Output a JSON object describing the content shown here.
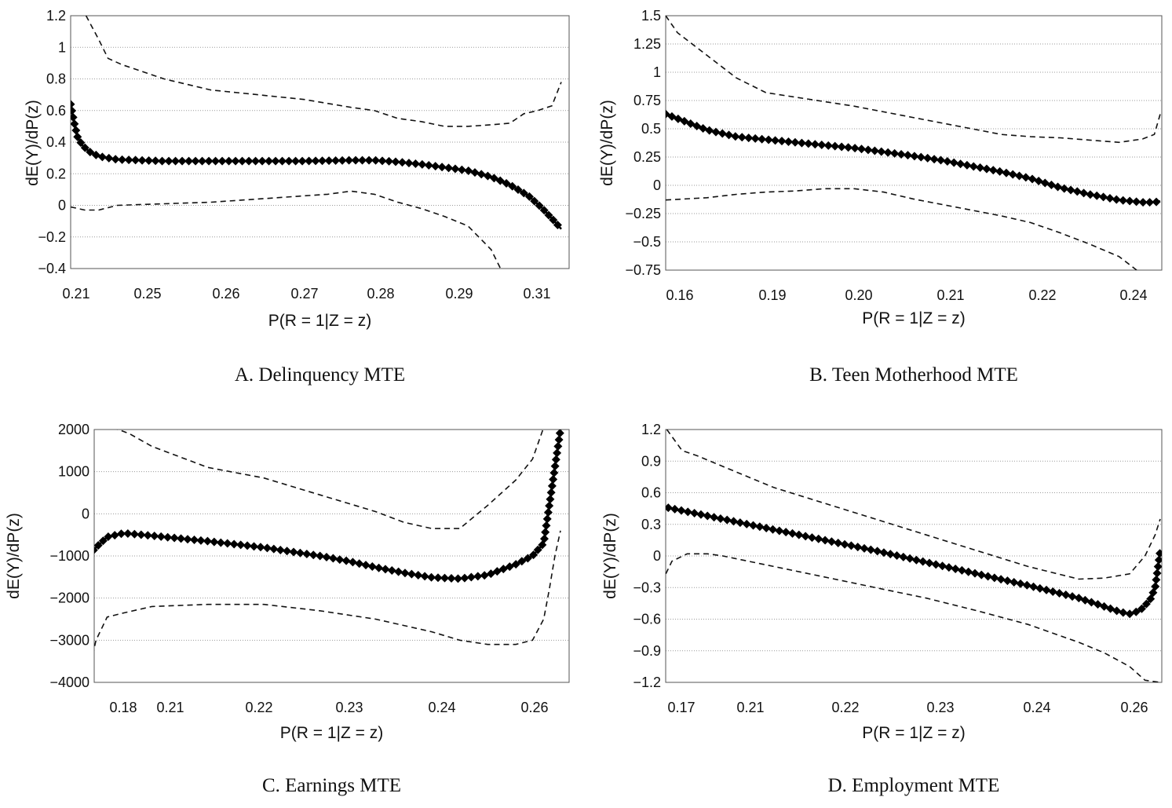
{
  "chart_data": [
    {
      "type": "line",
      "caption": "A. Delinquency MTE",
      "xlabel": "P(R = 1|Z = z)",
      "ylabel": "dE(Y)/dP(z)",
      "x_tick_labels": [
        "0.21",
        "0.25",
        "0.26",
        "0.27",
        "0.28",
        "0.29",
        "0.31"
      ],
      "y_ticks": [
        -0.4,
        -0.2,
        0,
        0.2,
        0.4,
        0.6,
        0.8,
        1,
        1.2
      ],
      "y_tick_labels": [
        "−0.4",
        "−0.2",
        "0",
        "0.2",
        "0.4",
        "0.6",
        "0.8",
        "1",
        "1.2"
      ],
      "ylim": [
        -0.4,
        1.2
      ],
      "x_range": [
        0.21,
        0.315
      ],
      "grid": true,
      "series": [
        {
          "role": "estimate",
          "style": "solid-diamonds",
          "x": [
            0.21,
            0.2107,
            0.2115,
            0.2125,
            0.214,
            0.216,
            0.22,
            0.23,
            0.24,
            0.25,
            0.26,
            0.27,
            0.275,
            0.28,
            0.285,
            0.29,
            0.295,
            0.3,
            0.304,
            0.308,
            0.311,
            0.3135,
            0.315
          ],
          "y": [
            0.64,
            0.53,
            0.43,
            0.38,
            0.34,
            0.31,
            0.29,
            0.28,
            0.28,
            0.28,
            0.28,
            0.285,
            0.285,
            0.275,
            0.26,
            0.24,
            0.22,
            0.18,
            0.13,
            0.06,
            -0.02,
            -0.1,
            -0.15
          ]
        },
        {
          "role": "upper-ci",
          "style": "dashed",
          "x": [
            0.2133,
            0.216,
            0.218,
            0.221,
            0.225,
            0.23,
            0.24,
            0.25,
            0.26,
            0.27,
            0.275,
            0.28,
            0.285,
            0.29,
            0.295,
            0.3,
            0.304,
            0.307,
            0.31,
            0.313,
            0.315
          ],
          "y": [
            1.2,
            1.05,
            0.93,
            0.89,
            0.85,
            0.8,
            0.73,
            0.7,
            0.67,
            0.62,
            0.6,
            0.55,
            0.53,
            0.5,
            0.5,
            0.51,
            0.52,
            0.58,
            0.6,
            0.63,
            0.78
          ]
        },
        {
          "role": "lower-ci",
          "style": "dashed",
          "x": [
            0.21,
            0.213,
            0.216,
            0.22,
            0.23,
            0.24,
            0.25,
            0.26,
            0.265,
            0.27,
            0.275,
            0.28,
            0.285,
            0.29,
            0.295,
            0.3,
            0.302
          ],
          "y": [
            -0.01,
            -0.03,
            -0.03,
            0.0,
            0.01,
            0.02,
            0.04,
            0.06,
            0.07,
            0.09,
            0.07,
            0.02,
            -0.02,
            -0.07,
            -0.13,
            -0.28,
            -0.4
          ]
        }
      ]
    },
    {
      "type": "line",
      "caption": "B. Teen Motherhood MTE",
      "xlabel": "P(R = 1|Z = z)",
      "ylabel": "dE(Y)/dP(z)",
      "x_ticks": [
        0.16,
        0.19,
        0.2,
        0.21,
        0.22,
        0.24
      ],
      "x_tick_labels": [
        "0.16",
        "0.19",
        "0.20",
        "0.21",
        "0.22",
        "0.24"
      ],
      "y_ticks": [
        -0.75,
        -0.5,
        -0.25,
        0,
        0.25,
        0.5,
        0.75,
        1,
        1.25,
        1.5
      ],
      "y_tick_labels": [
        "−0.75",
        "−0.5",
        "−0.25",
        "0",
        "0.25",
        "0.5",
        "0.75",
        "1",
        "1.25",
        "1.5"
      ],
      "ylim": [
        -0.75,
        1.5
      ],
      "x_range": [
        0.158,
        0.242
      ],
      "grid": true,
      "series": [
        {
          "role": "estimate",
          "style": "solid-diamonds",
          "x": [
            0.158,
            0.162,
            0.165,
            0.17,
            0.18,
            0.19,
            0.2,
            0.205,
            0.21,
            0.215,
            0.22,
            0.225,
            0.23,
            0.235,
            0.239,
            0.241,
            0.242
          ],
          "y": [
            0.63,
            0.55,
            0.49,
            0.43,
            0.38,
            0.33,
            0.26,
            0.22,
            0.17,
            0.12,
            0.06,
            -0.02,
            -0.08,
            -0.13,
            -0.15,
            -0.15,
            -0.14
          ]
        },
        {
          "role": "upper-ci",
          "style": "dashed",
          "x": [
            0.158,
            0.16,
            0.165,
            0.17,
            0.175,
            0.18,
            0.19,
            0.2,
            0.205,
            0.21,
            0.215,
            0.22,
            0.225,
            0.23,
            0.235,
            0.239,
            0.241,
            0.242
          ],
          "y": [
            1.5,
            1.35,
            1.15,
            0.95,
            0.82,
            0.78,
            0.7,
            0.6,
            0.55,
            0.5,
            0.45,
            0.43,
            0.42,
            0.4,
            0.38,
            0.41,
            0.45,
            0.63
          ]
        },
        {
          "role": "lower-ci",
          "style": "dashed",
          "x": [
            0.158,
            0.165,
            0.17,
            0.175,
            0.18,
            0.185,
            0.19,
            0.195,
            0.2,
            0.205,
            0.21,
            0.215,
            0.22,
            0.225,
            0.23,
            0.235,
            0.238
          ],
          "y": [
            -0.13,
            -0.11,
            -0.08,
            -0.06,
            -0.05,
            -0.03,
            -0.03,
            -0.06,
            -0.12,
            -0.17,
            -0.22,
            -0.27,
            -0.33,
            -0.42,
            -0.52,
            -0.63,
            -0.75
          ]
        }
      ]
    },
    {
      "type": "line",
      "caption": "C. Earnings MTE",
      "xlabel": "P(R = 1|Z = z)",
      "ylabel": "dE(Y)/dP(z)",
      "x_ticks": [
        0.18,
        0.21,
        0.22,
        0.23,
        0.24,
        0.26
      ],
      "x_tick_labels": [
        "0.18",
        "0.21",
        "0.22",
        "0.23",
        "0.24",
        "0.26"
      ],
      "y_ticks": [
        -4000,
        -3000,
        -2000,
        -1000,
        0,
        1000,
        2000
      ],
      "y_tick_labels": [
        "−4000",
        "−3000",
        "−2000",
        "−1000",
        "0",
        "1000",
        "2000"
      ],
      "ylim": [
        -4000,
        2000
      ],
      "x_range": [
        0.178,
        0.263
      ],
      "grid": true,
      "series": [
        {
          "role": "estimate",
          "style": "solid-diamonds",
          "x": [
            0.178,
            0.18,
            0.182,
            0.185,
            0.19,
            0.2,
            0.21,
            0.22,
            0.225,
            0.23,
            0.235,
            0.24,
            0.245,
            0.25,
            0.255,
            0.258,
            0.26,
            0.261,
            0.262,
            0.263
          ],
          "y": [
            -1100,
            -800,
            -550,
            -460,
            -520,
            -650,
            -800,
            -1000,
            -1120,
            -1270,
            -1400,
            -1510,
            -1540,
            -1450,
            -1200,
            -1000,
            -700,
            200,
            1100,
            2000
          ]
        },
        {
          "role": "upper-ci",
          "style": "dashed",
          "x": [
            0.183,
            0.186,
            0.19,
            0.2,
            0.21,
            0.22,
            0.225,
            0.23,
            0.235,
            0.24,
            0.245,
            0.25,
            0.255,
            0.258,
            0.26
          ],
          "y": [
            2050,
            1900,
            1600,
            1100,
            850,
            450,
            250,
            50,
            -200,
            -350,
            -350,
            200,
            800,
            1300,
            2050
          ]
        },
        {
          "role": "lower-ci",
          "style": "dashed",
          "x": [
            0.178,
            0.179,
            0.18,
            0.182,
            0.185,
            0.19,
            0.2,
            0.21,
            0.22,
            0.23,
            0.24,
            0.245,
            0.25,
            0.255,
            0.258,
            0.26,
            0.261,
            0.262,
            0.263
          ],
          "y": [
            -4000,
            -3600,
            -3000,
            -2450,
            -2350,
            -2200,
            -2150,
            -2150,
            -2300,
            -2500,
            -2800,
            -3000,
            -3100,
            -3100,
            -3000,
            -2500,
            -1800,
            -1000,
            -400
          ]
        }
      ]
    },
    {
      "type": "line",
      "caption": "D. Employment MTE",
      "xlabel": "P(R = 1|Z = z)",
      "ylabel": "dE(Y)/dP(z)",
      "x_ticks": [
        0.17,
        0.21,
        0.22,
        0.23,
        0.24,
        0.26
      ],
      "x_tick_labels": [
        "0.17",
        "0.21",
        "0.22",
        "0.23",
        "0.24",
        "0.26"
      ],
      "y_ticks": [
        -1.2,
        -0.9,
        -0.6,
        -0.3,
        0,
        0.3,
        0.6,
        0.9,
        1.2
      ],
      "y_tick_labels": [
        "−1.2",
        "−0.9",
        "−0.6",
        "−0.3",
        "0",
        "0.3",
        "0.6",
        "0.9",
        "1.2"
      ],
      "ylim": [
        -1.2,
        1.2
      ],
      "x_range": [
        0.168,
        0.266
      ],
      "grid": true,
      "series": [
        {
          "role": "estimate",
          "style": "solid-diamonds",
          "x": [
            0.168,
            0.175,
            0.18,
            0.19,
            0.2,
            0.21,
            0.22,
            0.23,
            0.24,
            0.25,
            0.255,
            0.258,
            0.26,
            0.262,
            0.264,
            0.265,
            0.266
          ],
          "y": [
            0.47,
            0.4,
            0.35,
            0.25,
            0.15,
            0.05,
            -0.06,
            -0.17,
            -0.28,
            -0.4,
            -0.48,
            -0.53,
            -0.55,
            -0.52,
            -0.42,
            -0.3,
            0.05
          ]
        },
        {
          "role": "upper-ci",
          "style": "dashed",
          "x": [
            0.169,
            0.172,
            0.175,
            0.18,
            0.19,
            0.2,
            0.21,
            0.22,
            0.23,
            0.24,
            0.25,
            0.255,
            0.26,
            0.263,
            0.265,
            0.266
          ],
          "y": [
            1.2,
            1.0,
            0.95,
            0.85,
            0.65,
            0.5,
            0.35,
            0.2,
            0.05,
            -0.1,
            -0.22,
            -0.21,
            -0.17,
            0.0,
            0.2,
            0.35
          ]
        },
        {
          "role": "lower-ci",
          "style": "dashed",
          "x": [
            0.168,
            0.17,
            0.173,
            0.177,
            0.18,
            0.185,
            0.19,
            0.2,
            0.21,
            0.22,
            0.23,
            0.24,
            0.25,
            0.255,
            0.26,
            0.263,
            0.266
          ],
          "y": [
            -0.25,
            -0.05,
            0.02,
            0.02,
            0.0,
            -0.05,
            -0.1,
            -0.2,
            -0.3,
            -0.4,
            -0.52,
            -0.65,
            -0.82,
            -0.92,
            -1.05,
            -1.18,
            -1.2
          ]
        }
      ]
    }
  ]
}
